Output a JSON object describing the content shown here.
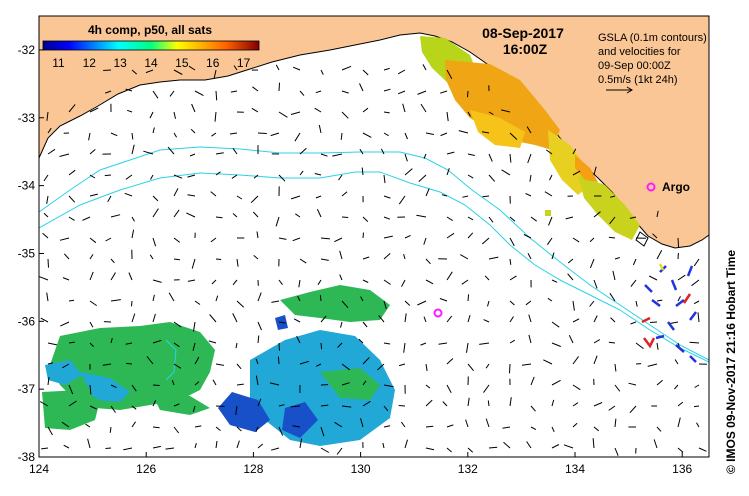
{
  "header": {
    "date": "08-Sep-2017",
    "time": "16:00Z"
  },
  "colorbar": {
    "title": "4h comp, p50, all sats",
    "ticks": [
      "11",
      "12",
      "13",
      "14",
      "15",
      "16",
      "17"
    ],
    "min": 10.5,
    "max": 17.5
  },
  "legend": {
    "line1": "GSLA (0.1m contours)",
    "line2": "and velocities for",
    "line3": "09-Sep 00:00Z",
    "line4": "0.5m/s (1kt 24h)"
  },
  "argo_label": "Argo",
  "credit": "© IMOS 09-Nov-2017 21:16 Hobart Time",
  "colors": {
    "land": "#fbc695",
    "contour": "#29d3e6",
    "argo": "#ff1aff",
    "warm_sst": "#f0a614",
    "cool_sst": "#2db855"
  },
  "chart_data": {
    "type": "map",
    "xlim": [
      124,
      136.5
    ],
    "ylim": [
      -38,
      -31.5
    ],
    "x_ticks": [
      124,
      126,
      128,
      130,
      132,
      134,
      136
    ],
    "y_ticks": [
      -32,
      -33,
      -34,
      -35,
      -36,
      -37,
      -38
    ],
    "x_tick_labels": [
      "124",
      "126",
      "128",
      "130",
      "132",
      "134",
      "136"
    ],
    "y_tick_labels": [
      "-32",
      "-33",
      "-34",
      "-35",
      "-36",
      "-37",
      "-38"
    ],
    "argo_floats": [
      {
        "lon": 135.5,
        "lat": -33.9,
        "labeled": true
      },
      {
        "lon": 131.5,
        "lat": -35.8,
        "labeled": false
      }
    ]
  }
}
